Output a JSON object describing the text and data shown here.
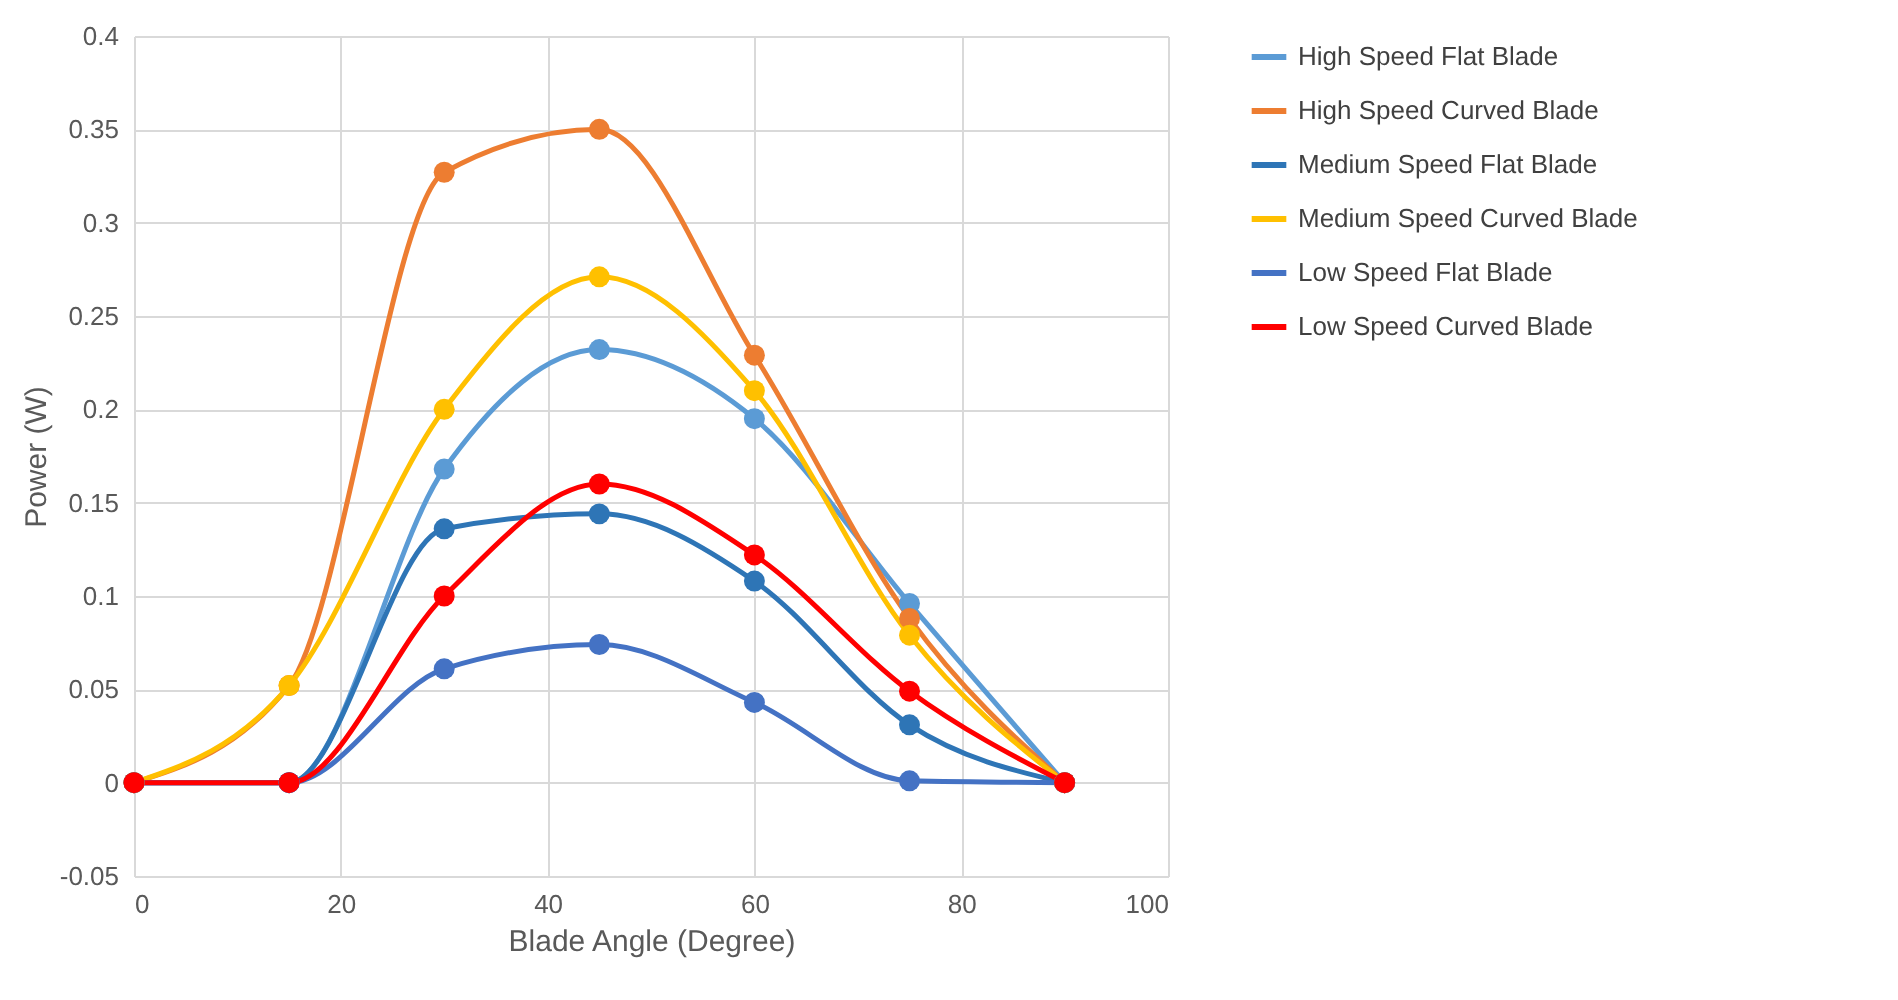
{
  "chart_data": {
    "type": "line",
    "xlabel": "Blade Angle (Degree)",
    "ylabel": "Power (W)",
    "x": [
      0,
      15,
      30,
      45,
      60,
      75,
      90
    ],
    "xlim": [
      0,
      100
    ],
    "xticks": [
      0,
      20,
      40,
      60,
      80,
      100
    ],
    "ylim": [
      -0.05,
      0.4
    ],
    "yticks": [
      -0.05,
      0,
      0.05,
      0.1,
      0.15,
      0.2,
      0.25,
      0.3,
      0.35,
      0.4
    ],
    "grid": true,
    "legend": "right",
    "marker": "circle",
    "line_style": "solid",
    "series": [
      {
        "name": "High Speed Flat Blade",
        "color": "#5b9bd5",
        "values": [
          0,
          0,
          0.168,
          0.232,
          0.195,
          0.096,
          0
        ]
      },
      {
        "name": "High Speed Curved Blade",
        "color": "#ed7d31",
        "values": [
          0,
          0.052,
          0.327,
          0.35,
          0.229,
          0.088,
          0
        ]
      },
      {
        "name": "Medium Speed Flat Blade",
        "color": "#2e75b6",
        "values": [
          0,
          0,
          0.136,
          0.144,
          0.108,
          0.031,
          0
        ]
      },
      {
        "name": "Medium Speed Curved Blade",
        "color": "#ffc000",
        "values": [
          0,
          0.052,
          0.2,
          0.271,
          0.21,
          0.079,
          0
        ]
      },
      {
        "name": "Low Speed Flat Blade",
        "color": "#4472c4",
        "values": [
          0,
          0,
          0.061,
          0.074,
          0.043,
          0.001,
          0
        ]
      },
      {
        "name": "Low Speed Curved Blade",
        "color": "#ff0000",
        "values": [
          0,
          0,
          0.1,
          0.16,
          0.122,
          0.049,
          0
        ]
      }
    ]
  }
}
